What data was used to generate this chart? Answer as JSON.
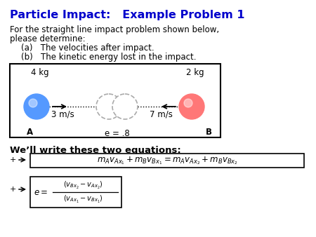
{
  "title": "Particle Impact:   Example Problem 1",
  "title_color": "#0000CC",
  "bg_color": "#FFFFFF",
  "body_text_1": "For the straight line impact problem shown below,",
  "body_text_2": "please determine:",
  "item_a": "(a)   The velocities after impact.",
  "item_b": "(b)   The kinetic energy lost in the impact.",
  "ball_A_mass": "4 kg",
  "ball_B_mass": "2 kg",
  "ball_A_vel": "3 m/s",
  "ball_B_vel": "7 m/s",
  "coeff_rest": "e = .8",
  "label_A": "A",
  "label_B": "B",
  "equations_intro": "We’ll write these two equations:",
  "eq1_text": "$m_Av_{Ax_1} + m_Bv_{Bx_1}  =  m_Av_{Ax_2} + m_Bv_{Bx_2}$",
  "eq2_num": "$(v_{Bx_2} - v_{Ax_2})$",
  "eq2_den": "$(v_{Ax_1} - v_{Bx_1})$",
  "eq2_lhs": "$e = $",
  "ball_A_color": "#5599FF",
  "ball_B_color": "#FF7777",
  "box_color": "#000000",
  "arrow_color": "#000000",
  "ghost_color": "#AAAAAA"
}
